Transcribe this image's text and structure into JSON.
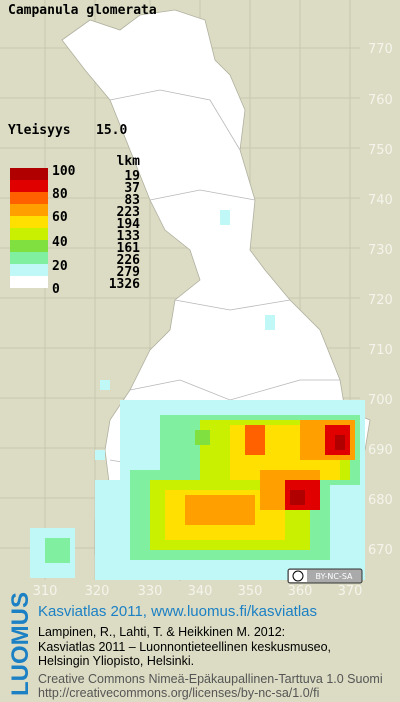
{
  "title": "Campanula glomerata",
  "index": {
    "label": "Yleisyys",
    "value": "15.0"
  },
  "legend": {
    "scale_labels": [
      "100",
      "80",
      "60",
      "40",
      "20",
      "0"
    ],
    "count_header": "lkm",
    "counts": [
      "19",
      "37",
      "83",
      "223",
      "194",
      "133",
      "161",
      "226",
      "279",
      "1326"
    ]
  },
  "grid": {
    "y_labels": [
      "770",
      "760",
      "750",
      "740",
      "730",
      "720",
      "710",
      "700",
      "690",
      "680",
      "670"
    ],
    "x_labels": [
      "310",
      "320",
      "330",
      "340",
      "350",
      "360",
      "370"
    ]
  },
  "license_badge": "BY-NC-SA",
  "logo": "LUOMUS",
  "footer": {
    "heading": "Kasviatlas 2011, www.luomus.fi/kasviatlas",
    "citation": [
      "Lampinen, R., Lahti, T. & Heikkinen M. 2012:",
      "Kasviatlas 2011 – Luonnontieteellinen keskusmuseo,",
      "Helsingin Yliopisto, Helsinki."
    ],
    "license": [
      "Creative Commons Nimeä-Epäkaupallinen-Tarttuva 1.0 Suomi",
      "http://creativecommons.org/licenses/by-nc-sa/1.0/fi"
    ]
  }
}
